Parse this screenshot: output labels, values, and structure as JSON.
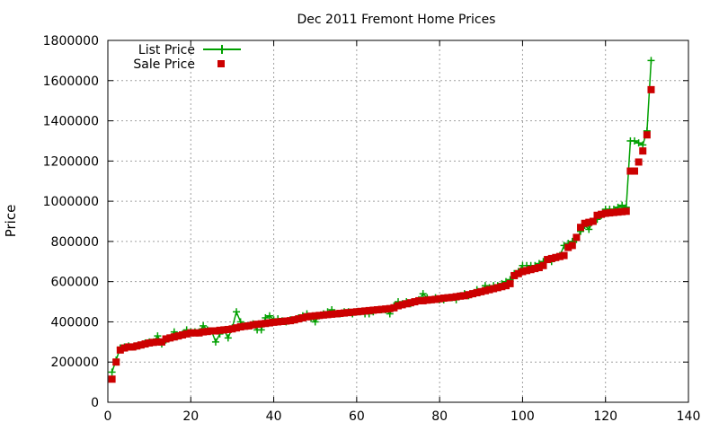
{
  "chart_data": {
    "type": "line",
    "title": "Dec 2011 Fremont Home Prices",
    "xlabel": "",
    "ylabel": "Price",
    "xlim": [
      0,
      140
    ],
    "ylim": [
      0,
      1800000
    ],
    "x_ticks": [
      "0",
      "20",
      "40",
      "60",
      "80",
      "100",
      "120",
      "140"
    ],
    "y_ticks": [
      "0",
      "200000",
      "400000",
      "600000",
      "800000",
      "1000000",
      "1200000",
      "1400000",
      "1600000",
      "1800000"
    ],
    "grid": true,
    "legend_position": "top-left",
    "colors": {
      "list": "#00a000",
      "sale": "#cc0000",
      "grid": "#a0a0a0"
    },
    "series": [
      {
        "name": "List Price",
        "style": "line+cross",
        "x": [
          1,
          2,
          3,
          4,
          5,
          6,
          7,
          8,
          9,
          10,
          11,
          12,
          13,
          14,
          15,
          16,
          17,
          18,
          19,
          20,
          21,
          22,
          23,
          24,
          25,
          26,
          27,
          28,
          29,
          30,
          31,
          32,
          33,
          34,
          35,
          36,
          37,
          38,
          39,
          40,
          41,
          42,
          43,
          44,
          45,
          46,
          47,
          48,
          49,
          50,
          51,
          52,
          53,
          54,
          55,
          56,
          57,
          58,
          59,
          60,
          61,
          62,
          63,
          64,
          65,
          66,
          67,
          68,
          69,
          70,
          71,
          72,
          73,
          74,
          75,
          76,
          77,
          78,
          79,
          80,
          81,
          82,
          83,
          84,
          85,
          86,
          87,
          88,
          89,
          90,
          91,
          92,
          93,
          94,
          95,
          96,
          97,
          98,
          99,
          100,
          101,
          102,
          103,
          104,
          105,
          106,
          107,
          108,
          109,
          110,
          111,
          112,
          113,
          114,
          115,
          116,
          117,
          118,
          119,
          120,
          121,
          122,
          123,
          124,
          125,
          126,
          127,
          128,
          129,
          130,
          131
        ],
        "values": [
          150000,
          210000,
          270000,
          275000,
          280000,
          275000,
          280000,
          285000,
          295000,
          300000,
          300000,
          330000,
          290000,
          310000,
          320000,
          350000,
          330000,
          340000,
          360000,
          350000,
          350000,
          350000,
          380000,
          360000,
          355000,
          300000,
          340000,
          360000,
          320000,
          370000,
          450000,
          400000,
          380000,
          380000,
          390000,
          360000,
          360000,
          420000,
          430000,
          410000,
          415000,
          405000,
          400000,
          410000,
          410000,
          420000,
          430000,
          440000,
          420000,
          400000,
          430000,
          440000,
          450000,
          460000,
          440000,
          440000,
          450000,
          450000,
          440000,
          450000,
          450000,
          440000,
          440000,
          450000,
          460000,
          460000,
          460000,
          440000,
          480000,
          500000,
          490000,
          500000,
          490000,
          500000,
          510000,
          540000,
          520000,
          510000,
          520000,
          510000,
          510000,
          520000,
          520000,
          510000,
          530000,
          540000,
          530000,
          540000,
          560000,
          550000,
          580000,
          570000,
          580000,
          580000,
          590000,
          600000,
          610000,
          640000,
          650000,
          680000,
          680000,
          680000,
          680000,
          690000,
          700000,
          710000,
          700000,
          720000,
          730000,
          780000,
          790000,
          800000,
          810000,
          850000,
          880000,
          860000,
          900000,
          910000,
          930000,
          960000,
          960000,
          960000,
          970000,
          980000,
          970000,
          1300000,
          1300000,
          1290000,
          1280000,
          1350000,
          1700000
        ]
      },
      {
        "name": "Sale Price",
        "style": "points",
        "x": [
          1,
          2,
          3,
          4,
          5,
          6,
          7,
          8,
          9,
          10,
          11,
          12,
          13,
          14,
          15,
          16,
          17,
          18,
          19,
          20,
          21,
          22,
          23,
          24,
          25,
          26,
          27,
          28,
          29,
          30,
          31,
          32,
          33,
          34,
          35,
          36,
          37,
          38,
          39,
          40,
          41,
          42,
          43,
          44,
          45,
          46,
          47,
          48,
          49,
          50,
          51,
          52,
          53,
          54,
          55,
          56,
          57,
          58,
          59,
          60,
          61,
          62,
          63,
          64,
          65,
          66,
          67,
          68,
          69,
          70,
          71,
          72,
          73,
          74,
          75,
          76,
          77,
          78,
          79,
          80,
          81,
          82,
          83,
          84,
          85,
          86,
          87,
          88,
          89,
          90,
          91,
          92,
          93,
          94,
          95,
          96,
          97,
          98,
          99,
          100,
          101,
          102,
          103,
          104,
          105,
          106,
          107,
          108,
          109,
          110,
          111,
          112,
          113,
          114,
          115,
          116,
          117,
          118,
          119,
          120,
          121,
          122,
          123,
          124,
          125,
          126,
          127,
          128,
          129,
          130,
          131
        ],
        "values": [
          115000,
          200000,
          260000,
          270000,
          275000,
          275000,
          280000,
          285000,
          290000,
          295000,
          298000,
          300000,
          300000,
          315000,
          320000,
          325000,
          330000,
          335000,
          340000,
          345000,
          345000,
          345000,
          350000,
          352000,
          355000,
          355000,
          358000,
          360000,
          362000,
          365000,
          370000,
          375000,
          378000,
          380000,
          385000,
          388000,
          390000,
          392000,
          395000,
          398000,
          400000,
          402000,
          404000,
          406000,
          410000,
          415000,
          420000,
          425000,
          428000,
          430000,
          432000,
          434000,
          436000,
          438000,
          440000,
          442000,
          444000,
          446000,
          448000,
          450000,
          452000,
          454000,
          456000,
          458000,
          460000,
          462000,
          464000,
          466000,
          470000,
          480000,
          485000,
          490000,
          495000,
          500000,
          505000,
          505000,
          508000,
          510000,
          512000,
          515000,
          518000,
          520000,
          522000,
          525000,
          528000,
          530000,
          535000,
          540000,
          545000,
          550000,
          555000,
          560000,
          565000,
          570000,
          575000,
          580000,
          590000,
          630000,
          640000,
          650000,
          655000,
          660000,
          665000,
          670000,
          680000,
          710000,
          715000,
          720000,
          725000,
          730000,
          770000,
          780000,
          820000,
          870000,
          890000,
          895000,
          900000,
          930000,
          935000,
          940000,
          942000,
          944000,
          946000,
          948000,
          950000,
          1150000,
          1150000,
          1195000,
          1250000,
          1330000,
          1555000
        ]
      }
    ]
  }
}
